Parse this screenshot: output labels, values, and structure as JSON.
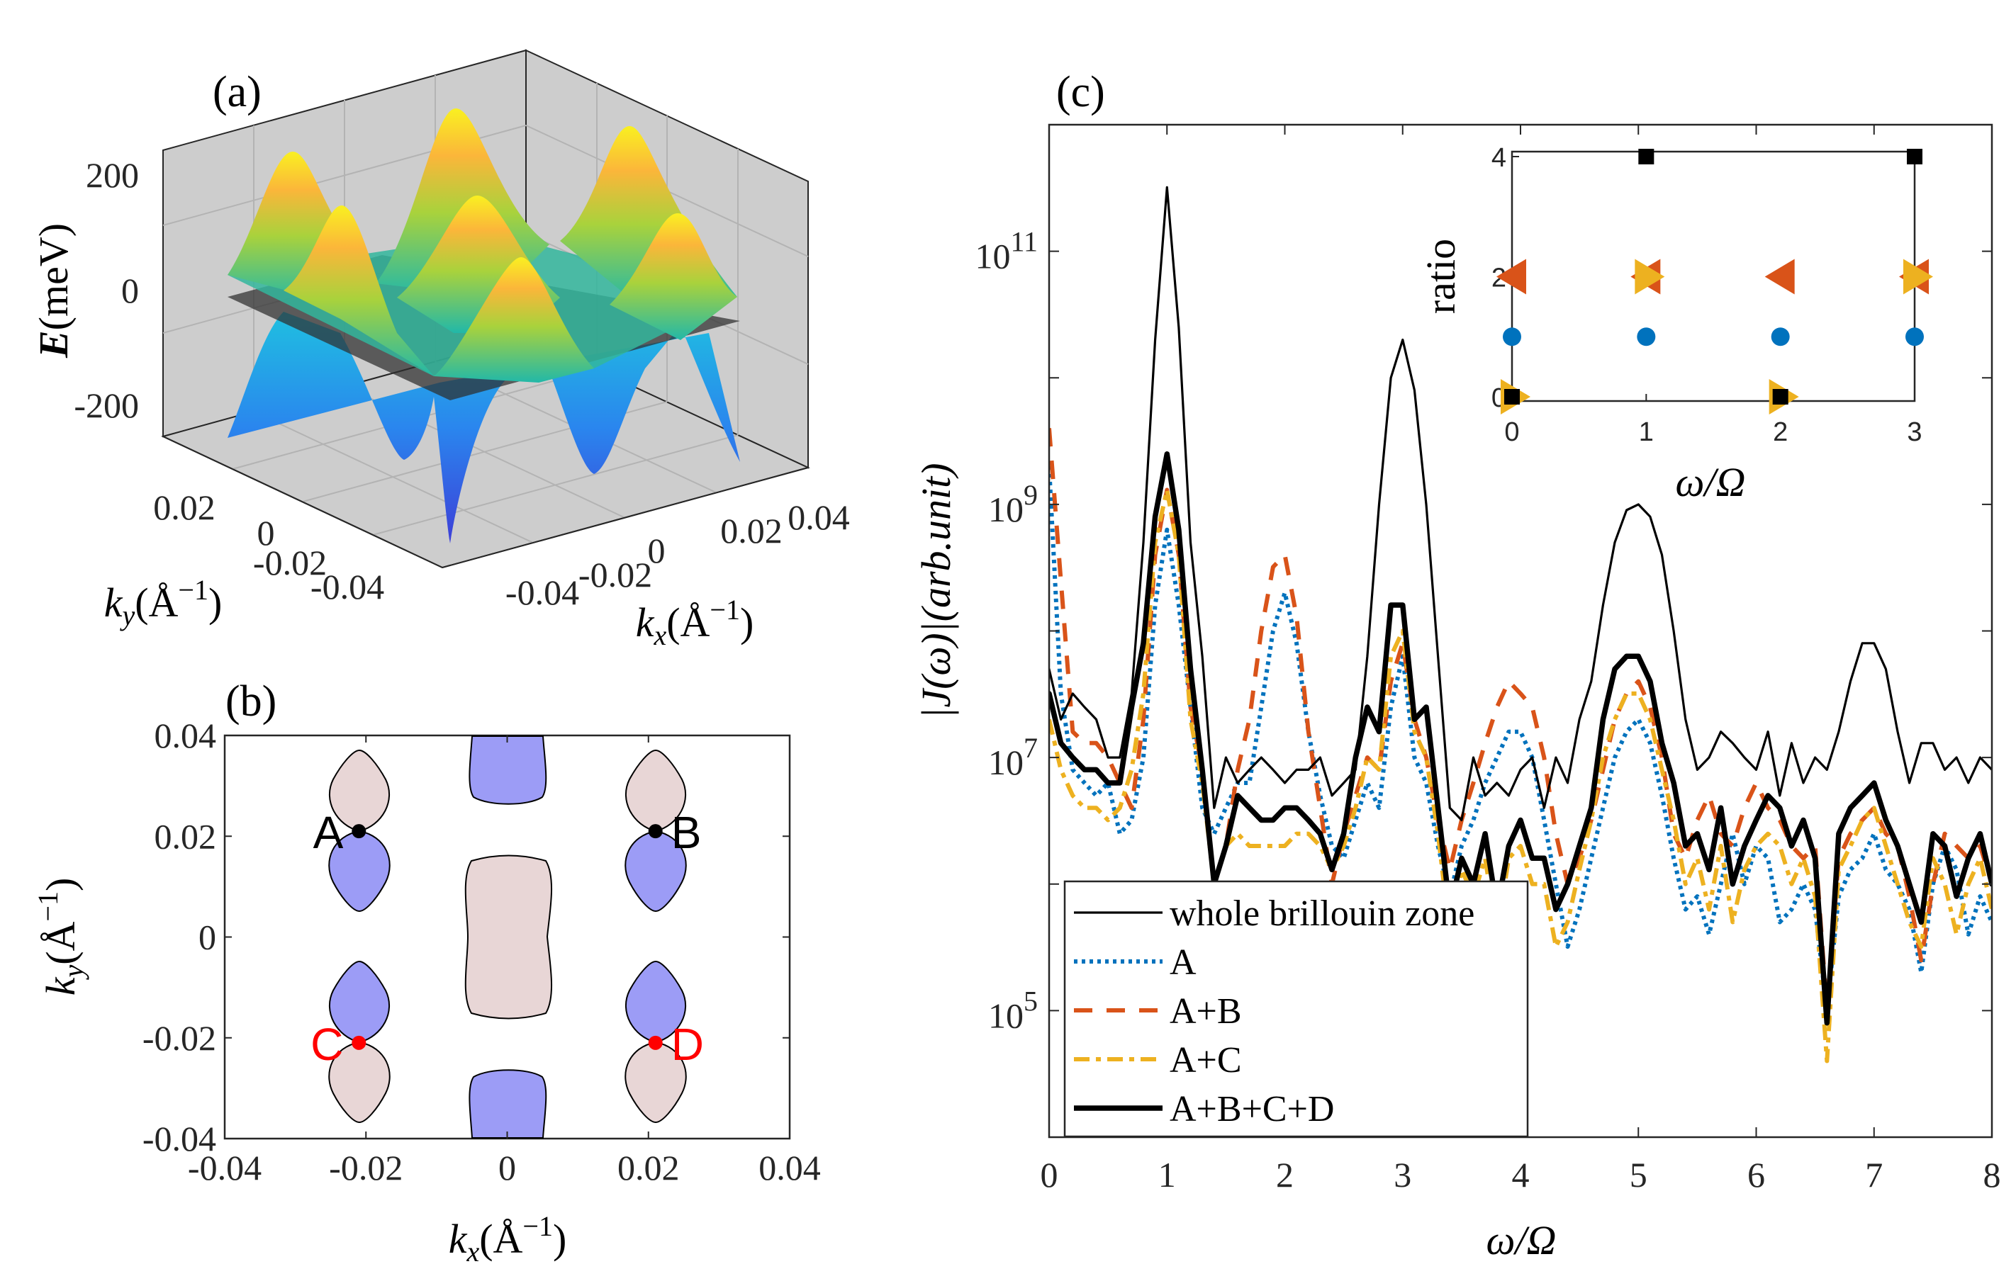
{
  "panels": {
    "a": {
      "label": "(a)"
    },
    "b": {
      "label": "(b)"
    },
    "c": {
      "label": "(c)"
    }
  },
  "chart_data": [
    {
      "type": "surface",
      "panel": "a",
      "zlabel": {
        "symbol": "E",
        "unit": "(meV)"
      },
      "xlabel": {
        "symbol": "k",
        "sub": "x",
        "unit_open": "(Å",
        "sup": "−1",
        "unit_close": ")"
      },
      "ylabel": {
        "symbol": "k",
        "sub": "y",
        "unit_open": "(Å",
        "sup": "−1",
        "unit_close": ")"
      },
      "zticks": [
        "200",
        "0",
        "-200"
      ],
      "xticks": [
        "-0.04",
        "-0.02",
        "0",
        "0.02",
        "0.04"
      ],
      "yticks": [
        "0.02",
        "0",
        "-0.02",
        "-0.04"
      ],
      "plane_at": 0,
      "colormap": "parula"
    },
    {
      "type": "contour",
      "panel": "b",
      "xlabel": {
        "symbol": "k",
        "sub": "x",
        "unit_open": "(Å",
        "sup": "−1",
        "unit_close": ")"
      },
      "ylabel": {
        "symbol": "k",
        "sub": "y",
        "unit_open": "(Å",
        "sup": "−1",
        "unit_close": ")"
      },
      "xlim": [
        -0.04,
        0.04
      ],
      "ylim": [
        -0.04,
        0.04
      ],
      "xticks": [
        "-0.04",
        "-0.02",
        "0",
        "0.02",
        "0.04"
      ],
      "yticks": [
        "0.04",
        "0.02",
        "0",
        "-0.02",
        "-0.04"
      ],
      "region_colors": {
        "positive": "#e8d6d6",
        "negative": "#9c9cf6"
      },
      "points": [
        {
          "label": "A",
          "kx": -0.021,
          "ky": 0.021,
          "color": "#000000"
        },
        {
          "label": "B",
          "kx": 0.021,
          "ky": 0.021,
          "color": "#000000"
        },
        {
          "label": "C",
          "kx": -0.021,
          "ky": -0.021,
          "color": "#ff0000"
        },
        {
          "label": "D",
          "kx": 0.021,
          "ky": -0.021,
          "color": "#ff0000"
        }
      ]
    },
    {
      "type": "line",
      "panel": "c",
      "yscale": "log",
      "xlim": [
        0,
        8
      ],
      "ylim": [
        10000.0,
        1000000000000.0
      ],
      "xlabel": "ω/Ω",
      "ylabel": "|J(ω)|(arb.unit)",
      "xticks": [
        "0",
        "1",
        "2",
        "3",
        "4",
        "5",
        "6",
        "7",
        "8"
      ],
      "yticks": [
        {
          "base": "10",
          "exp": "5",
          "value": 100000.0
        },
        {
          "base": "10",
          "exp": "7",
          "value": 10000000.0
        },
        {
          "base": "10",
          "exp": "9",
          "value": 1000000000.0
        },
        {
          "base": "10",
          "exp": "11",
          "value": 100000000000.0
        }
      ],
      "legend_position": "bottom-left",
      "x": [
        0,
        0.1,
        0.2,
        0.3,
        0.4,
        0.5,
        0.6,
        0.7,
        0.8,
        0.9,
        1.0,
        1.1,
        1.2,
        1.3,
        1.4,
        1.5,
        1.6,
        1.7,
        1.8,
        1.9,
        2.0,
        2.1,
        2.2,
        2.3,
        2.4,
        2.5,
        2.6,
        2.7,
        2.8,
        2.9,
        3.0,
        3.1,
        3.2,
        3.3,
        3.4,
        3.5,
        3.6,
        3.7,
        3.8,
        3.9,
        4.0,
        4.1,
        4.2,
        4.3,
        4.4,
        4.5,
        4.6,
        4.7,
        4.8,
        4.9,
        5.0,
        5.1,
        5.2,
        5.3,
        5.4,
        5.5,
        5.6,
        5.7,
        5.8,
        5.9,
        6.0,
        6.1,
        6.2,
        6.3,
        6.4,
        6.5,
        6.6,
        6.7,
        6.8,
        6.9,
        7.0,
        7.1,
        7.2,
        7.3,
        7.4,
        7.5,
        7.6,
        7.7,
        7.8,
        7.9,
        8.0
      ],
      "series": [
        {
          "name": "A",
          "color": "#0072bd",
          "style": "dotted",
          "values": [
            2000000000.0,
            32000000.0,
            8000000.0,
            6300000.0,
            5000000.0,
            6300000.0,
            2500000.0,
            3200000.0,
            10000000.0,
            160000000.0,
            630000000.0,
            160000000.0,
            25000000.0,
            4000000.0,
            2500000.0,
            4000000.0,
            6300000.0,
            6300000.0,
            25000000.0,
            100000000.0,
            200000000.0,
            80000000.0,
            16000000.0,
            5000000.0,
            2000000.0,
            1600000.0,
            3200000.0,
            6300000.0,
            4000000.0,
            25000000.0,
            63000000.0,
            10000000.0,
            6300000.0,
            2000000.0,
            800000.0,
            2000000.0,
            3200000.0,
            6300000.0,
            10000000.0,
            16000000.0,
            16000000.0,
            10000000.0,
            3200000.0,
            1000000.0,
            320000.0,
            630000.0,
            1600000.0,
            4000000.0,
            10000000.0,
            16000000.0,
            20000000.0,
            13000000.0,
            5000000.0,
            1600000.0,
            630000.0,
            800000.0,
            400000.0,
            1000000.0,
            2500000.0,
            1000000.0,
            2000000.0,
            1600000.0,
            500000.0,
            630000.0,
            1000000.0,
            630000.0,
            100000.0,
            800000.0,
            1300000.0,
            1600000.0,
            2500000.0,
            1300000.0,
            1000000.0,
            630000.0,
            200000.0,
            1000000.0,
            2000000.0,
            1300000.0,
            400000.0,
            800000.0,
            500000.0
          ]
        },
        {
          "name": "A+B",
          "color": "#d95319",
          "style": "dashed",
          "values": [
            4000000000.0,
            250000000.0,
            16000000.0,
            13000000.0,
            13000000.0,
            10000000.0,
            6300000.0,
            4000000.0,
            20000000.0,
            400000000.0,
            1300000000.0,
            400000000.0,
            25000000.0,
            8000000.0,
            1000000.0,
            2000000.0,
            8000000.0,
            20000000.0,
            100000000.0,
            320000000.0,
            400000000.0,
            130000000.0,
            16000000.0,
            4000000.0,
            1000000.0,
            2500000.0,
            5000000.0,
            10000000.0,
            8000000.0,
            40000000.0,
            80000000.0,
            20000000.0,
            10000000.0,
            3200000.0,
            1300000.0,
            3200000.0,
            6300000.0,
            13000000.0,
            25000000.0,
            40000000.0,
            32000000.0,
            25000000.0,
            10000000.0,
            2500000.0,
            1000000.0,
            1600000.0,
            3200000.0,
            8000000.0,
            20000000.0,
            32000000.0,
            40000000.0,
            25000000.0,
            10000000.0,
            2500000.0,
            1600000.0,
            3200000.0,
            5000000.0,
            2500000.0,
            2000000.0,
            4000000.0,
            6300000.0,
            4000000.0,
            3200000.0,
            2000000.0,
            1600000.0,
            2000000.0,
            100000.0,
            1600000.0,
            2500000.0,
            3200000.0,
            4000000.0,
            2500000.0,
            2000000.0,
            800000.0,
            250000.0,
            1000000.0,
            2500000.0,
            2000000.0,
            1600000.0,
            2000000.0,
            1000000.0
          ]
        },
        {
          "name": "A+C",
          "color": "#edb120",
          "style": "dashdot",
          "values": [
            20000000.0,
            8000000.0,
            5000000.0,
            4000000.0,
            4000000.0,
            3200000.0,
            4000000.0,
            8000000.0,
            32000000.0,
            500000000.0,
            1300000000.0,
            400000000.0,
            20000000.0,
            6300000.0,
            1000000.0,
            2000000.0,
            2500000.0,
            2000000.0,
            2000000.0,
            2000000.0,
            2000000.0,
            2500000.0,
            2500000.0,
            2000000.0,
            1300000.0,
            2000000.0,
            4000000.0,
            10000000.0,
            8000000.0,
            63000000.0,
            100000000.0,
            16000000.0,
            10000000.0,
            2500000.0,
            400000.0,
            1300000.0,
            800000.0,
            1600000.0,
            400000.0,
            1600000.0,
            2000000.0,
            1000000.0,
            1000000.0,
            320000.0,
            500000.0,
            1300000.0,
            3200000.0,
            10000000.0,
            20000000.0,
            32000000.0,
            32000000.0,
            20000000.0,
            8000000.0,
            3200000.0,
            1000000.0,
            1600000.0,
            630000.0,
            2000000.0,
            500000.0,
            1300000.0,
            2000000.0,
            2500000.0,
            2000000.0,
            1000000.0,
            1600000.0,
            800000.0,
            40000.0,
            1300000.0,
            2000000.0,
            3200000.0,
            4000000.0,
            2000000.0,
            1000000.0,
            500000.0,
            320000.0,
            1600000.0,
            1000000.0,
            400000.0,
            1000000.0,
            1600000.0,
            630000.0
          ]
        },
        {
          "name": "whole brillouin zone",
          "color": "#000000",
          "style": "thin",
          "values": [
            50000000.0,
            20000000.0,
            32000000.0,
            25000000.0,
            20000000.0,
            10000000.0,
            10000000.0,
            32000000.0,
            500000000.0,
            20000000000.0,
            320000000000.0,
            25000000000.0,
            500000000.0,
            63000000.0,
            4000000.0,
            10000000.0,
            6300000.0,
            8000000.0,
            10000000.0,
            8000000.0,
            6300000.0,
            8000000.0,
            8000000.0,
            10000000.0,
            5000000.0,
            6300000.0,
            8000000.0,
            63000000.0,
            1000000000.0,
            10000000000.0,
            20000000000.0,
            8000000000.0,
            1000000000.0,
            63000000.0,
            4000000.0,
            3200000.0,
            10000000.0,
            5000000.0,
            6300000.0,
            5000000.0,
            8000000.0,
            10000000.0,
            4000000.0,
            10000000.0,
            6300000.0,
            20000000.0,
            40000000.0,
            160000000.0,
            500000000.0,
            900000000.0,
            1000000000.0,
            800000000.0,
            400000000.0,
            100000000.0,
            20000000.0,
            8000000.0,
            10000000.0,
            16000000.0,
            13000000.0,
            10000000.0,
            8000000.0,
            16000000.0,
            5000000.0,
            13000000.0,
            6300000.0,
            10000000.0,
            8000000.0,
            16000000.0,
            40000000.0,
            80000000.0,
            80000000.0,
            50000000.0,
            16000000.0,
            6300000.0,
            13000000.0,
            13000000.0,
            8000000.0,
            10000000.0,
            6300000.0,
            10000000.0,
            8000000.0
          ]
        },
        {
          "name": "A+B+C+D",
          "color": "#000000",
          "style": "thick",
          "values": [
            32000000.0,
            13000000.0,
            10000000.0,
            8000000.0,
            8000000.0,
            6300000.0,
            6300000.0,
            25000000.0,
            80000000.0,
            800000000.0,
            2500000000.0,
            630000000.0,
            50000000.0,
            8000000.0,
            1000000.0,
            2000000.0,
            5000000.0,
            4000000.0,
            3200000.0,
            3200000.0,
            4000000.0,
            4000000.0,
            3200000.0,
            2500000.0,
            1300000.0,
            2500000.0,
            10000000.0,
            25000000.0,
            16000000.0,
            160000000.0,
            160000000.0,
            20000000.0,
            25000000.0,
            4000000.0,
            630000.0,
            1600000.0,
            1000000.0,
            2500000.0,
            630000.0,
            2000000.0,
            3200000.0,
            1600000.0,
            1600000.0,
            630000.0,
            1000000.0,
            2000000.0,
            4000000.0,
            20000000.0,
            50000000.0,
            63000000.0,
            63000000.0,
            40000000.0,
            13000000.0,
            6300000.0,
            2000000.0,
            2500000.0,
            1300000.0,
            4000000.0,
            1000000.0,
            2000000.0,
            3200000.0,
            5000000.0,
            4000000.0,
            2000000.0,
            3200000.0,
            1600000.0,
            80000.0,
            2500000.0,
            4000000.0,
            5000000.0,
            6300000.0,
            3200000.0,
            2000000.0,
            1000000.0,
            500000.0,
            2500000.0,
            2000000.0,
            800000.0,
            1600000.0,
            2500000.0,
            1000000.0
          ]
        }
      ]
    },
    {
      "type": "scatter",
      "panel": "c-inset",
      "xlabel": "ω/Ω",
      "ylabel": "ratio",
      "xlim": [
        0,
        3
      ],
      "ylim": [
        0,
        4
      ],
      "xticks": [
        "0",
        "1",
        "2",
        "3"
      ],
      "yticks": [
        "0",
        "2",
        "4"
      ],
      "series": [
        {
          "marker": "circle",
          "color": "#0072bd",
          "x": [
            0,
            1,
            2,
            3
          ],
          "y": [
            1,
            1,
            1,
            1
          ]
        },
        {
          "marker": "triangle-left",
          "color": "#d95319",
          "x": [
            0,
            1,
            2,
            3
          ],
          "y": [
            2,
            2,
            2,
            2
          ]
        },
        {
          "marker": "triangle-right",
          "color": "#edb120",
          "x": [
            0,
            1,
            2,
            3
          ],
          "y": [
            0,
            2,
            0,
            2
          ]
        },
        {
          "marker": "square",
          "color": "#000000",
          "x": [
            0,
            1,
            2,
            3
          ],
          "y": [
            0,
            4,
            0,
            4
          ]
        }
      ]
    }
  ]
}
